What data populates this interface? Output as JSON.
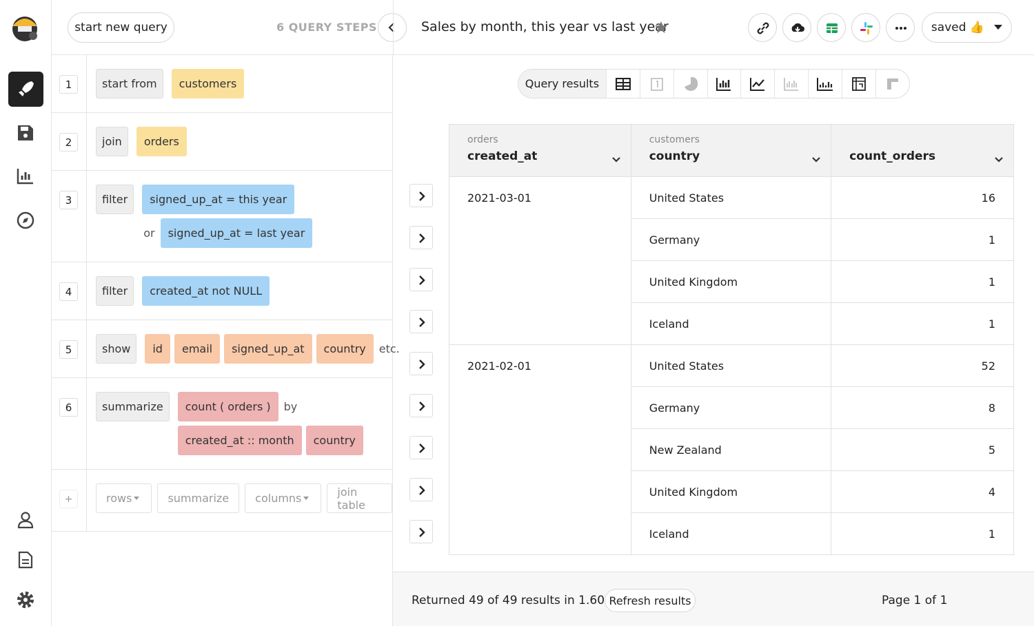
{
  "header": {
    "new_query": "start new query",
    "steps_count": "6 QUERY STEPS",
    "title": "Sales by month, this year vs last year",
    "saved": "saved 👍"
  },
  "steps": [
    {
      "number": "1",
      "op": "start from",
      "lines": [
        {
          "tokens": [
            "customers"
          ]
        }
      ]
    },
    {
      "number": "2",
      "op": "join",
      "lines": [
        {
          "tokens": [
            "orders"
          ]
        }
      ]
    },
    {
      "number": "3",
      "op": "filter",
      "lines": [
        {
          "tokens": [
            "signed_up_at = this year"
          ]
        },
        {
          "prefix": "or",
          "tokens": [
            "signed_up_at = last year"
          ]
        }
      ]
    },
    {
      "number": "4",
      "op": "filter",
      "lines": [
        {
          "tokens": [
            "created_at not NULL"
          ]
        }
      ]
    },
    {
      "number": "5",
      "op": "show",
      "lines": [
        {
          "tokens": [
            "id",
            "email",
            "signed_up_at",
            "country"
          ],
          "suffix": "etc."
        }
      ]
    },
    {
      "number": "6",
      "op": "summarize",
      "lines": [
        {
          "tokens": [
            "count ( orders )"
          ],
          "suffix": "by"
        },
        {
          "tokens": [
            "created_at :: month",
            "country"
          ]
        }
      ]
    }
  ],
  "add_step": {
    "plus": "+",
    "buttons": [
      "rows",
      "summarize",
      "columns",
      "join table"
    ]
  },
  "view": {
    "tab": "Query results"
  },
  "table": {
    "columns": [
      {
        "source": "orders",
        "name": "created_at"
      },
      {
        "source": "customers",
        "name": "country"
      },
      {
        "name": "count_orders"
      }
    ],
    "groups": [
      {
        "created_at": "2021-03-01",
        "rows": [
          [
            "United States",
            16
          ],
          [
            "Germany",
            1
          ],
          [
            "United Kingdom",
            1
          ],
          [
            "Iceland",
            1
          ]
        ]
      },
      {
        "created_at": "2021-02-01",
        "rows": [
          [
            "United States",
            52
          ],
          [
            "Germany",
            8
          ],
          [
            "New Zealand",
            5
          ],
          [
            "United Kingdom",
            4
          ],
          [
            "Iceland",
            1
          ]
        ]
      }
    ]
  },
  "footer": {
    "summary": "Returned 49 of 49 results in 1.60s",
    "refresh": "Refresh results",
    "page": "Page 1 of 1"
  }
}
